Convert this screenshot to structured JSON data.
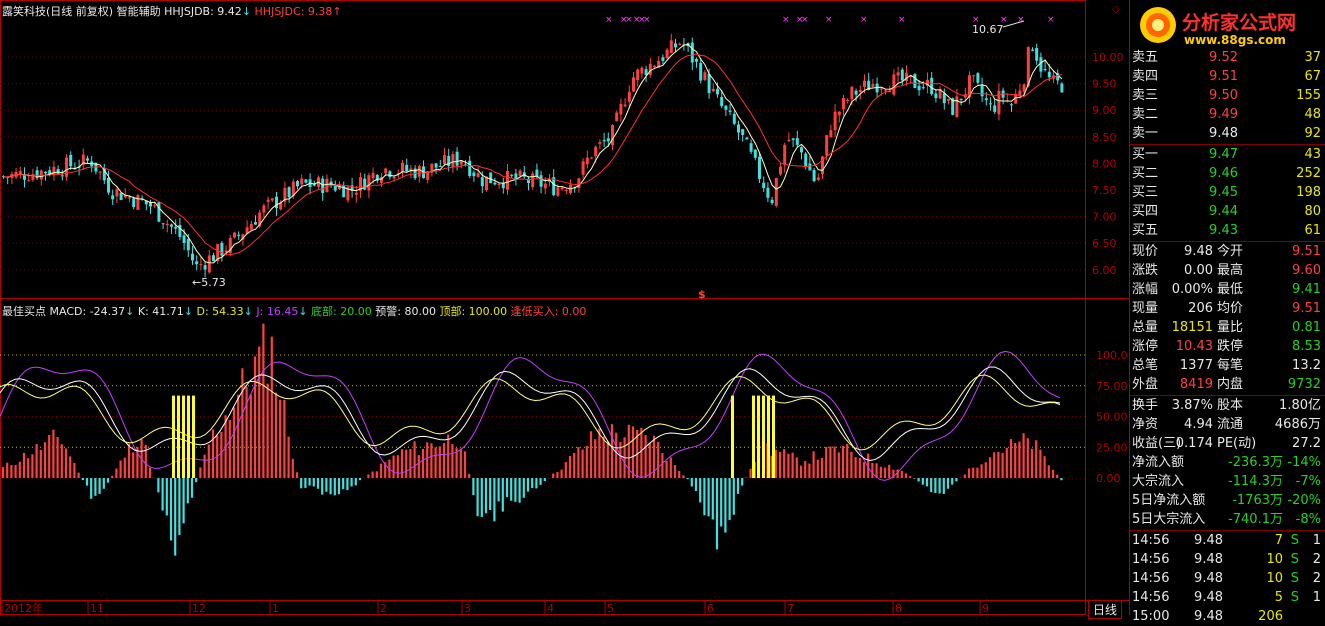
{
  "header": {
    "title": "露笑科技(日线 前复权) 智能辅助",
    "ind1_label": "HHJSJDB: 9.42",
    "ind2_label": "HHJSJDC: 9.38",
    "ind1_arrow": "↓",
    "ind2_arrow": "↑"
  },
  "lower_header": {
    "name": "最佳买点",
    "macd": "MACD: -24.37",
    "k": "K: 41.71",
    "d": "D: 54.33",
    "j": "J: 16.45",
    "bottom": "底部: 20.00",
    "warn": "预警: 80.00",
    "top": "顶部: 100.00",
    "buy": "逢低买入: 0.00",
    "arrow": "↓"
  },
  "price_axis": [
    "10.00",
    "9.50",
    "9.00",
    "8.50",
    "8.00",
    "7.50",
    "7.00",
    "6.50",
    "6.00"
  ],
  "lower_axis": [
    "100.0",
    "75.00",
    "50.00",
    "25.00",
    "0.00"
  ],
  "annotations": {
    "high": "10.67",
    "low": "5.73",
    "dollar": "$",
    "markers": "×"
  },
  "time_axis": [
    "2012年",
    "11",
    "12",
    "1",
    "2",
    "3",
    "4",
    "5",
    "6",
    "7",
    "8",
    "9"
  ],
  "period_label": "日线",
  "logo": {
    "title": "分析家公式网",
    "url": "www.88gs.com"
  },
  "sell_orders": [
    {
      "label": "卖五",
      "price": "9.52",
      "vol": "37"
    },
    {
      "label": "卖四",
      "price": "9.51",
      "vol": "67"
    },
    {
      "label": "卖三",
      "price": "9.50",
      "vol": "155"
    },
    {
      "label": "卖二",
      "price": "9.49",
      "vol": "48"
    },
    {
      "label": "卖一",
      "price": "9.48",
      "vol": "92"
    }
  ],
  "buy_orders": [
    {
      "label": "买一",
      "price": "9.47",
      "vol": "43"
    },
    {
      "label": "买二",
      "price": "9.46",
      "vol": "252"
    },
    {
      "label": "买三",
      "price": "9.45",
      "vol": "198"
    },
    {
      "label": "买四",
      "price": "9.44",
      "vol": "80"
    },
    {
      "label": "买五",
      "price": "9.43",
      "vol": "61"
    }
  ],
  "quote": [
    {
      "l1": "现价",
      "v1": "9.48",
      "l2": "今开",
      "v2": "9.51",
      "c1": "wht",
      "c2": "red"
    },
    {
      "l1": "涨跌",
      "v1": "0.00",
      "l2": "最高",
      "v2": "9.60",
      "c1": "wht",
      "c2": "red"
    },
    {
      "l1": "涨幅",
      "v1": "0.00%",
      "l2": "最低",
      "v2": "9.41",
      "c1": "wht",
      "c2": "grn"
    },
    {
      "l1": "现量",
      "v1": "206",
      "l2": "均价",
      "v2": "9.51",
      "c1": "wht",
      "c2": "red"
    },
    {
      "l1": "总量",
      "v1": "18151",
      "l2": "量比",
      "v2": "0.81",
      "c1": "yel",
      "c2": "grn"
    },
    {
      "l1": "涨停",
      "v1": "10.43",
      "l2": "跌停",
      "v2": "8.53",
      "c1": "red",
      "c2": "grn"
    },
    {
      "l1": "总笔",
      "v1": "1377",
      "l2": "每笔",
      "v2": "13.2",
      "c1": "wht",
      "c2": "wht"
    },
    {
      "l1": "外盘",
      "v1": "8419",
      "l2": "内盘",
      "v2": "9732",
      "c1": "red",
      "c2": "grn"
    }
  ],
  "fundamentals": [
    {
      "l1": "换手",
      "v1": "3.87%",
      "l2": "股本",
      "v2": "1.80亿"
    },
    {
      "l1": "净资",
      "v1": "4.94",
      "l2": "流通",
      "v2": "4686万"
    },
    {
      "l1": "收益(三)",
      "v1": "0.174",
      "l2": "PE(动)",
      "v2": "27.2"
    }
  ],
  "flows": [
    {
      "label": "净流入额",
      "value": "-236.3万",
      "pct": "-14%"
    },
    {
      "label": "大宗流入",
      "value": "-114.3万",
      "pct": "-7%"
    },
    {
      "label": "5日净流入额",
      "value": "-1763万",
      "pct": "-20%"
    },
    {
      "label": "5日大宗流入",
      "value": "-740.1万",
      "pct": "-8%"
    }
  ],
  "ticks": [
    {
      "time": "14:56",
      "price": "9.48",
      "vol": "7",
      "side": "S",
      "n": "1"
    },
    {
      "time": "14:56",
      "price": "9.48",
      "vol": "10",
      "side": "S",
      "n": "2"
    },
    {
      "time": "14:56",
      "price": "9.48",
      "vol": "10",
      "side": "S",
      "n": "2"
    },
    {
      "time": "14:56",
      "price": "9.48",
      "vol": "5",
      "side": "S",
      "n": "1"
    },
    {
      "time": "15:00",
      "price": "9.48",
      "vol": "206",
      "side": "",
      "n": ""
    }
  ],
  "colors": {
    "up": "#ff4040",
    "down": "#40e0e0",
    "border": "#b00000",
    "ma1": "#ffffc0",
    "ma2": "#ff3030",
    "k": "#ffffff",
    "d": "#ffff80",
    "j": "#c040ff",
    "signal": "#ffff30",
    "magenta": "#ff40ff"
  }
}
